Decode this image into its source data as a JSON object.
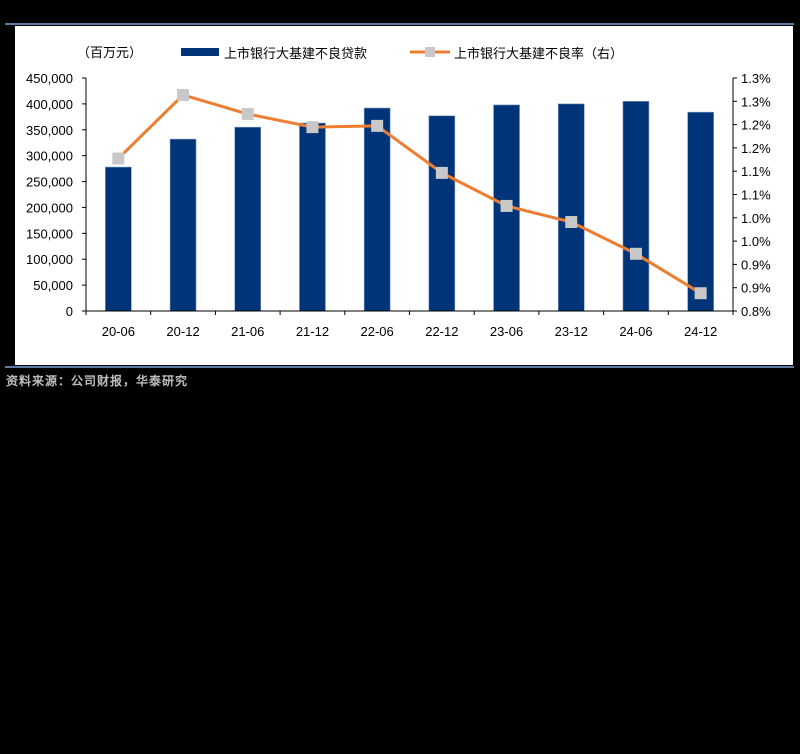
{
  "chart_data": {
    "type": "bar+line",
    "title": "",
    "unit_label": "（百万元）",
    "categories": [
      "20-06",
      "20-12",
      "21-06",
      "21-12",
      "22-06",
      "22-12",
      "23-06",
      "23-12",
      "24-06",
      "24-12"
    ],
    "series": [
      {
        "name": "上市银行大基建不良贷款",
        "type": "bar",
        "axis": "left",
        "color": "#003478",
        "values": [
          278000,
          332000,
          355000,
          363000,
          392000,
          377000,
          398000,
          400000,
          405000,
          384000
        ]
      },
      {
        "name": "上市银行大基建不良率（右）",
        "type": "line",
        "axis": "right",
        "color": "#ed7d31",
        "marker_color": "#c8c8c8",
        "values": [
          1.16,
          1.31,
          1.265,
          1.234,
          1.237,
          1.126,
          1.048,
          1.01,
          0.935,
          0.842
        ]
      }
    ],
    "left_axis": {
      "ylim": [
        0,
        450000
      ],
      "ticks": [
        "0",
        "50,000",
        "100,000",
        "150,000",
        "200,000",
        "250,000",
        "300,000",
        "350,000",
        "400,000",
        "450,000"
      ]
    },
    "right_axis": {
      "ylim": [
        0.8,
        1.35
      ],
      "ticks": [
        "0.8%",
        "0.9%",
        "0.9%",
        "1.0%",
        "1.0%",
        "1.1%",
        "1.1%",
        "1.2%",
        "1.2%",
        "1.3%",
        "1.3%"
      ]
    },
    "legend_position": "top",
    "grid": false
  },
  "source": "资料来源：公司财报，华泰研究"
}
